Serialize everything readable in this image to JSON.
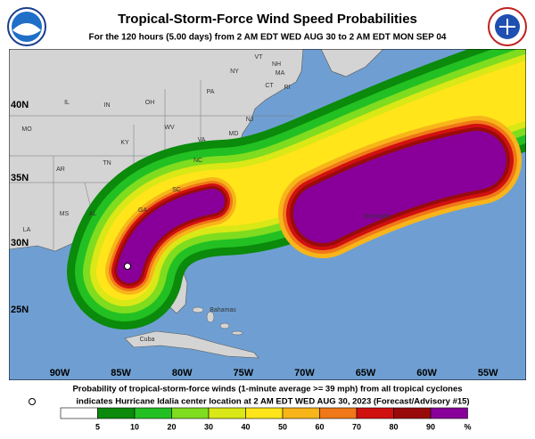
{
  "header": {
    "title": "Tropical-Storm-Force Wind Speed Probabilities",
    "subtitle": "For the 120 hours (5.00 days) from 2 AM EDT WED AUG 30 to 2 AM EDT MON SEP 04"
  },
  "map": {
    "lat_labels": [
      "40N",
      "35N",
      "30N",
      "25N"
    ],
    "lon_labels": [
      "90W",
      "85W",
      "80W",
      "75W",
      "70W",
      "65W",
      "60W",
      "55W"
    ],
    "state_labels": [
      "MO",
      "IL",
      "IN",
      "OH",
      "PA",
      "NY",
      "VT",
      "NH",
      "MA",
      "CT",
      "RI",
      "NJ",
      "MD",
      "WV",
      "VA",
      "KY",
      "TN",
      "AR",
      "NC",
      "SC",
      "GA",
      "AL",
      "MS",
      "LA"
    ],
    "place_labels": [
      "Bahamas",
      "Cuba",
      "Bermuda"
    ]
  },
  "footer": {
    "line1": "Probability of tropical-storm-force winds (1-minute average >= 39 mph) from all tropical cyclones",
    "line2": "indicates Hurricane Idalia center location at 2 AM EDT WED AUG 30, 2023 (Forecast/Advisory #15)"
  },
  "legend": {
    "bins": [
      5,
      10,
      20,
      30,
      40,
      50,
      60,
      70,
      80,
      90
    ],
    "unit": "%",
    "colors": [
      "#ffffff",
      "#0b8a0b",
      "#22c022",
      "#7fdc1f",
      "#d9e816",
      "#ffe51a",
      "#f8b51a",
      "#f07818",
      "#d11010",
      "#990b0b",
      "#880099"
    ]
  }
}
